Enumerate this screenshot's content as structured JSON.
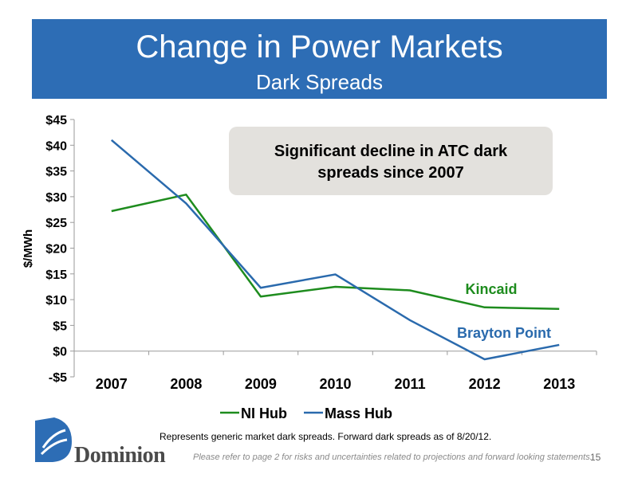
{
  "header": {
    "title": "Change in Power Markets",
    "subtitle": "Dark Spreads"
  },
  "callout": {
    "line1": "Significant decline in ATC dark",
    "line2": "spreads since 2007"
  },
  "chart_data": {
    "type": "line",
    "categories": [
      "2007",
      "2008",
      "2009",
      "2010",
      "2011",
      "2012",
      "2013"
    ],
    "series": [
      {
        "name": "NI Hub",
        "color": "#1e8c1e",
        "values": [
          27.2,
          30.4,
          10.6,
          12.5,
          11.8,
          8.5,
          8.2
        ]
      },
      {
        "name": "Mass Hub",
        "color": "#2a6aad",
        "values": [
          41.0,
          28.7,
          12.3,
          14.9,
          6.0,
          -1.6,
          1.2
        ]
      }
    ],
    "ylabel": "$/MWh",
    "ylim": [
      -5,
      45
    ],
    "yticks": [
      {
        "value": 45,
        "label": "$45"
      },
      {
        "value": 40,
        "label": "$40"
      },
      {
        "value": 35,
        "label": "$35"
      },
      {
        "value": 30,
        "label": "$30"
      },
      {
        "value": 25,
        "label": "$25"
      },
      {
        "value": 20,
        "label": "$20"
      },
      {
        "value": 15,
        "label": "$15"
      },
      {
        "value": 10,
        "label": "$10"
      },
      {
        "value": 5,
        "label": "$5"
      },
      {
        "value": 0,
        "label": "$0"
      },
      {
        "value": -5,
        "label": "-$5"
      }
    ],
    "annotations": [
      {
        "text": "Kincaid",
        "color": "#1e8c1e"
      },
      {
        "text": "Brayton Point",
        "color": "#2a6aad"
      }
    ],
    "legend": "bottom",
    "grid": false
  },
  "footnote": "Represents generic market dark spreads.  Forward dark spreads as of 8/20/12.",
  "footer": {
    "logo_text": "Dominion",
    "disclaimer": "Please refer to page 2 for risks and uncertainties related to projections and forward looking statements.",
    "page_number": "15"
  }
}
